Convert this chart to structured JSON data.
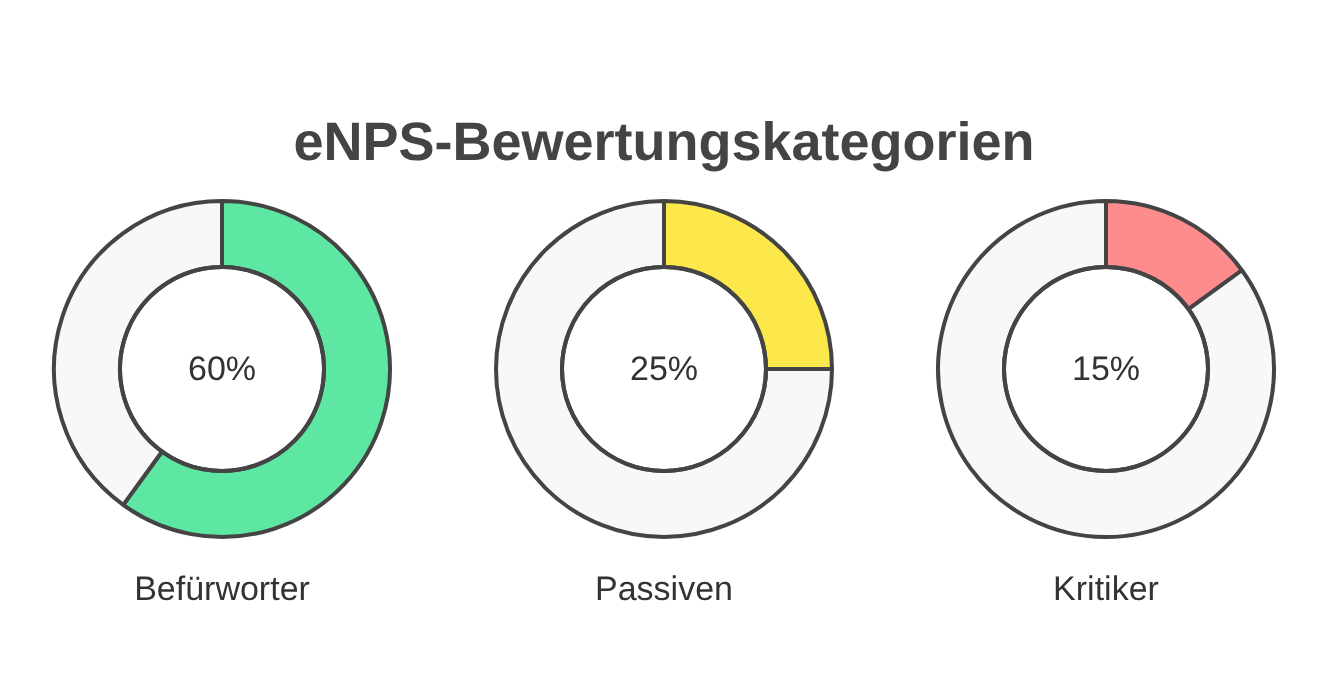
{
  "chart_data": [
    {
      "type": "other",
      "title": "eNPS-Bewertungskategorien"
    },
    {
      "type": "donut",
      "title": "Befürworter",
      "categories": [
        null,
        null
      ],
      "values": [
        60,
        40
      ],
      "colors": [
        "#5ee6a3",
        "#f8f8f8"
      ],
      "value_labels": [
        "60%",
        null
      ]
    },
    {
      "type": "donut",
      "title": "Passiven",
      "categories": [
        null,
        null
      ],
      "values": [
        25,
        75
      ],
      "colors": [
        "#fde84c",
        "#f8f8f8"
      ],
      "value_labels": [
        "25%",
        null
      ]
    },
    {
      "type": "donut",
      "title": "Kritiker",
      "categories": [
        null,
        null
      ],
      "values": [
        15,
        85
      ],
      "colors": [
        "#ff8c8c",
        "#f8f8f8"
      ],
      "value_labels": [
        "15%",
        null
      ]
    }
  ]
}
